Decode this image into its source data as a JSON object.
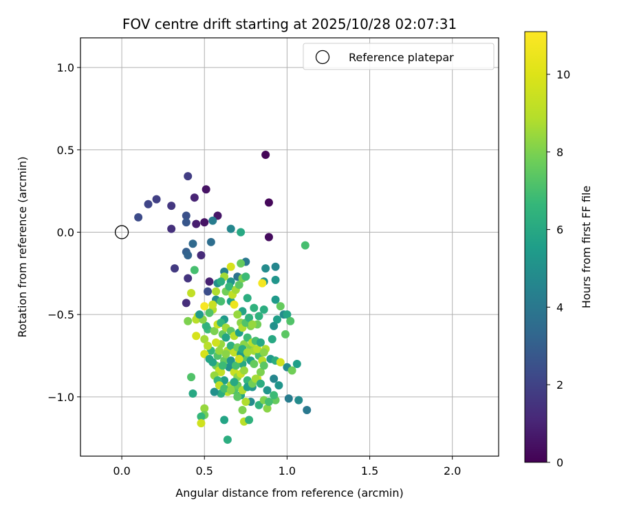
{
  "chart_data": {
    "type": "scatter",
    "title": "FOV centre drift starting at 2025/10/28 02:07:31",
    "xlabel": "Angular distance from reference (arcmin)",
    "ylabel": "Rotation from reference (arcmin)",
    "xlim": [
      -0.25,
      2.28
    ],
    "ylim": [
      -1.36,
      1.18
    ],
    "x_ticks": [
      0.0,
      0.5,
      1.0,
      1.5,
      2.0
    ],
    "x_tick_labels": [
      "0.0",
      "0.5",
      "1.0",
      "1.5",
      "2.0"
    ],
    "y_ticks": [
      1.0,
      0.5,
      0.0,
      -0.5,
      -1.0
    ],
    "y_tick_labels": [
      "1.0",
      "0.5",
      "0.0",
      "−0.5",
      "−1.0"
    ],
    "grid": true,
    "legend": {
      "position": "top-right",
      "entries": [
        {
          "label": "Reference platepar",
          "marker": "open-circle"
        }
      ]
    },
    "reference_point": {
      "x": 0.0,
      "y": 0.0
    },
    "colorbar": {
      "label": "Hours from first FF file",
      "range": [
        0,
        11.1
      ],
      "ticks": [
        0,
        2,
        4,
        6,
        8,
        10
      ],
      "tick_labels": [
        "0",
        "2",
        "4",
        "6",
        "8",
        "10"
      ],
      "colormap": "viridis"
    },
    "points": [
      [
        0.87,
        0.47,
        0.1
      ],
      [
        0.89,
        0.18,
        0.2
      ],
      [
        0.89,
        -0.03,
        0.3
      ],
      [
        0.51,
        0.26,
        0.5
      ],
      [
        0.58,
        0.1,
        0.6
      ],
      [
        0.5,
        0.06,
        0.5
      ],
      [
        0.45,
        0.05,
        0.8
      ],
      [
        0.44,
        0.21,
        1.0
      ],
      [
        0.48,
        -0.14,
        1.2
      ],
      [
        0.53,
        -0.3,
        0.9
      ],
      [
        0.4,
        0.34,
        1.8
      ],
      [
        0.3,
        0.16,
        1.6
      ],
      [
        0.3,
        0.02,
        1.4
      ],
      [
        0.21,
        0.2,
        1.9
      ],
      [
        0.16,
        0.17,
        2.1
      ],
      [
        0.1,
        0.09,
        2.3
      ],
      [
        0.32,
        -0.22,
        1.7
      ],
      [
        0.4,
        -0.28,
        1.5
      ],
      [
        0.39,
        -0.43,
        1.3
      ],
      [
        0.52,
        -0.36,
        2.4
      ],
      [
        0.39,
        0.1,
        2.5
      ],
      [
        0.39,
        0.06,
        2.7
      ],
      [
        0.39,
        -0.12,
        3.0
      ],
      [
        0.4,
        -0.14,
        3.2
      ],
      [
        0.43,
        -0.07,
        3.4
      ],
      [
        0.54,
        -0.06,
        3.6
      ],
      [
        0.55,
        0.07,
        4.2
      ],
      [
        0.66,
        0.02,
        4.6
      ],
      [
        0.72,
        0.0,
        6.0
      ],
      [
        0.58,
        -0.31,
        5.0
      ],
      [
        0.66,
        -0.3,
        5.2
      ],
      [
        0.7,
        -0.27,
        3.8
      ],
      [
        0.75,
        -0.18,
        4.0
      ],
      [
        0.62,
        -0.24,
        4.4
      ],
      [
        0.57,
        -0.41,
        4.8
      ],
      [
        0.62,
        -0.53,
        5.4
      ],
      [
        0.66,
        -0.42,
        5.6
      ],
      [
        0.73,
        -0.48,
        5.8
      ],
      [
        0.76,
        -0.4,
        6.2
      ],
      [
        0.8,
        -0.46,
        6.4
      ],
      [
        0.86,
        -0.3,
        5.0
      ],
      [
        0.87,
        -0.22,
        4.8
      ],
      [
        0.93,
        -0.21,
        4.6
      ],
      [
        0.93,
        -0.29,
        5.2
      ],
      [
        0.93,
        -0.41,
        5.4
      ],
      [
        0.92,
        -0.57,
        5.0
      ],
      [
        0.98,
        -0.5,
        4.8
      ],
      [
        0.94,
        -0.53,
        5.6
      ],
      [
        0.96,
        -0.45,
        7.6
      ],
      [
        1.11,
        -0.08,
        7.0
      ],
      [
        1.0,
        -0.5,
        5.8
      ],
      [
        1.02,
        -0.54,
        7.2
      ],
      [
        0.99,
        -0.62,
        7.4
      ],
      [
        0.91,
        -0.65,
        6.0
      ],
      [
        0.86,
        -0.47,
        6.2
      ],
      [
        0.83,
        -0.51,
        6.4
      ],
      [
        0.82,
        -0.56,
        7.8
      ],
      [
        0.78,
        -0.57,
        8.0
      ],
      [
        0.72,
        -0.55,
        8.2
      ],
      [
        0.7,
        -0.5,
        8.4
      ],
      [
        0.68,
        -0.44,
        10.5
      ],
      [
        0.85,
        -0.31,
        10.8
      ],
      [
        0.66,
        -0.21,
        9.8
      ],
      [
        0.62,
        -0.27,
        8.6
      ],
      [
        0.55,
        -0.47,
        8.8
      ],
      [
        0.5,
        -0.45,
        10.9
      ],
      [
        0.46,
        -0.51,
        9.6
      ],
      [
        0.45,
        -0.53,
        9.0
      ],
      [
        0.42,
        -0.37,
        9.2
      ],
      [
        0.44,
        -0.23,
        7.0
      ],
      [
        0.4,
        -0.54,
        8.0
      ],
      [
        0.45,
        -0.63,
        9.8
      ],
      [
        0.5,
        -0.65,
        8.6
      ],
      [
        0.52,
        -0.59,
        6.8
      ],
      [
        0.54,
        -0.72,
        6.6
      ],
      [
        0.58,
        -0.75,
        7.2
      ],
      [
        0.6,
        -0.68,
        8.4
      ],
      [
        0.62,
        -0.78,
        7.6
      ],
      [
        0.65,
        -0.82,
        5.0
      ],
      [
        0.68,
        -0.85,
        9.4
      ],
      [
        0.7,
        -0.88,
        8.2
      ],
      [
        0.73,
        -0.8,
        6.0
      ],
      [
        0.75,
        -0.76,
        7.4
      ],
      [
        0.78,
        -0.7,
        8.0
      ],
      [
        0.8,
        -0.72,
        8.6
      ],
      [
        0.83,
        -0.75,
        7.0
      ],
      [
        0.85,
        -0.78,
        9.0
      ],
      [
        0.87,
        -0.71,
        8.8
      ],
      [
        0.9,
        -0.77,
        5.4
      ],
      [
        0.93,
        -0.78,
        6.2
      ],
      [
        0.96,
        -0.79,
        9.6
      ],
      [
        1.0,
        -0.82,
        4.8
      ],
      [
        1.03,
        -0.84,
        7.8
      ],
      [
        1.06,
        -0.8,
        5.6
      ],
      [
        0.92,
        -0.89,
        4.6
      ],
      [
        0.88,
        -0.96,
        5.2
      ],
      [
        0.93,
        -1.02,
        7.6
      ],
      [
        0.88,
        -1.07,
        8.2
      ],
      [
        0.83,
        -1.05,
        6.4
      ],
      [
        0.78,
        -1.03,
        4.8
      ],
      [
        0.75,
        -1.03,
        8.8
      ],
      [
        0.72,
        -0.99,
        5.8
      ],
      [
        0.68,
        -0.96,
        7.2
      ],
      [
        0.64,
        -0.97,
        9.0
      ],
      [
        0.6,
        -0.98,
        6.2
      ],
      [
        0.56,
        -0.97,
        5.0
      ],
      [
        0.5,
        -1.07,
        8.4
      ],
      [
        0.5,
        -1.11,
        7.8
      ],
      [
        0.48,
        -1.12,
        6.6
      ],
      [
        0.48,
        -1.16,
        9.6
      ],
      [
        0.62,
        -1.14,
        5.8
      ],
      [
        0.64,
        -1.26,
        6.2
      ],
      [
        0.74,
        -1.15,
        9.0
      ],
      [
        0.77,
        -1.14,
        6.4
      ],
      [
        0.73,
        -1.08,
        8.0
      ],
      [
        1.01,
        -1.01,
        4.2
      ],
      [
        1.07,
        -1.02,
        4.8
      ],
      [
        1.12,
        -1.08,
        4.0
      ],
      [
        0.42,
        -0.88,
        7.2
      ],
      [
        0.43,
        -0.98,
        6.0
      ],
      [
        0.6,
        -0.85,
        9.2
      ],
      [
        0.62,
        -0.9,
        5.6
      ],
      [
        0.66,
        -0.93,
        8.6
      ],
      [
        0.7,
        -0.93,
        7.6
      ],
      [
        0.72,
        -0.86,
        9.4
      ],
      [
        0.74,
        -0.84,
        8.4
      ],
      [
        0.76,
        -0.9,
        6.6
      ],
      [
        0.79,
        -0.94,
        5.2
      ],
      [
        0.82,
        -0.89,
        9.8
      ],
      [
        0.84,
        -0.85,
        8.0
      ],
      [
        0.86,
        -0.81,
        7.4
      ],
      [
        0.64,
        -0.72,
        8.8
      ],
      [
        0.66,
        -0.69,
        6.4
      ],
      [
        0.68,
        -0.73,
        9.2
      ],
      [
        0.7,
        -0.7,
        7.8
      ],
      [
        0.72,
        -0.74,
        5.4
      ],
      [
        0.74,
        -0.68,
        8.2
      ],
      [
        0.76,
        -0.64,
        6.8
      ],
      [
        0.79,
        -0.67,
        9.0
      ],
      [
        0.81,
        -0.66,
        7.0
      ],
      [
        0.57,
        -0.67,
        9.6
      ],
      [
        0.59,
        -0.72,
        8.4
      ],
      [
        0.61,
        -0.62,
        7.6
      ],
      [
        0.63,
        -0.64,
        5.8
      ],
      [
        0.56,
        -0.6,
        8.0
      ],
      [
        0.58,
        -0.56,
        9.4
      ],
      [
        0.6,
        -0.55,
        6.6
      ],
      [
        0.63,
        -0.58,
        8.6
      ],
      [
        0.66,
        -0.6,
        7.4
      ],
      [
        0.68,
        -0.63,
        9.0
      ],
      [
        0.71,
        -0.61,
        5.6
      ],
      [
        0.73,
        -0.58,
        8.8
      ],
      [
        0.75,
        -0.55,
        7.2
      ],
      [
        0.77,
        -0.52,
        6.4
      ],
      [
        0.79,
        -0.56,
        8.4
      ],
      [
        0.57,
        -0.81,
        7.8
      ],
      [
        0.55,
        -0.79,
        5.8
      ],
      [
        0.59,
        -0.84,
        9.2
      ],
      [
        0.61,
        -0.81,
        6.8
      ],
      [
        0.63,
        -0.74,
        8.2
      ],
      [
        0.66,
        -0.78,
        5.2
      ],
      [
        0.69,
        -0.81,
        7.0
      ],
      [
        0.71,
        -0.77,
        9.6
      ],
      [
        0.73,
        -0.71,
        6.2
      ],
      [
        0.76,
        -0.73,
        8.6
      ],
      [
        0.78,
        -0.78,
        5.6
      ],
      [
        0.8,
        -0.8,
        7.6
      ],
      [
        0.82,
        -0.71,
        9.0
      ],
      [
        0.84,
        -0.67,
        6.0
      ],
      [
        0.86,
        -0.73,
        8.2
      ],
      [
        0.6,
        -0.42,
        7.0
      ],
      [
        0.63,
        -0.36,
        7.8
      ],
      [
        0.65,
        -0.33,
        6.6
      ],
      [
        0.67,
        -0.38,
        9.2
      ],
      [
        0.69,
        -0.35,
        8.6
      ],
      [
        0.71,
        -0.32,
        7.4
      ],
      [
        0.73,
        -0.28,
        8.0
      ],
      [
        0.75,
        -0.27,
        6.8
      ],
      [
        0.72,
        -0.19,
        7.6
      ],
      [
        0.6,
        -0.3,
        6.2
      ],
      [
        0.57,
        -0.36,
        8.8
      ],
      [
        0.55,
        -0.44,
        9.4
      ],
      [
        0.53,
        -0.49,
        7.2
      ],
      [
        0.51,
        -0.57,
        6.4
      ],
      [
        0.49,
        -0.53,
        8.2
      ],
      [
        0.47,
        -0.5,
        5.4
      ],
      [
        0.52,
        -0.69,
        9.0
      ],
      [
        0.5,
        -0.74,
        9.8
      ],
      [
        0.53,
        -0.77,
        5.8
      ],
      [
        0.56,
        -0.87,
        8.4
      ],
      [
        0.58,
        -0.9,
        6.6
      ],
      [
        0.59,
        -0.93,
        9.2
      ],
      [
        0.62,
        -0.95,
        7.0
      ],
      [
        0.66,
        -0.96,
        8.2
      ],
      [
        0.68,
        -0.91,
        6.0
      ],
      [
        0.7,
        -1.0,
        7.4
      ],
      [
        0.73,
        -0.96,
        8.8
      ],
      [
        0.76,
        -0.94,
        5.6
      ],
      [
        0.79,
        -0.92,
        7.8
      ],
      [
        0.81,
        -0.89,
        8.6
      ],
      [
        0.84,
        -0.92,
        6.2
      ],
      [
        0.86,
        -1.02,
        8.0
      ],
      [
        0.89,
        -1.03,
        7.0
      ],
      [
        0.92,
        -0.99,
        6.8
      ],
      [
        0.95,
        -0.93,
        5.2
      ]
    ]
  }
}
